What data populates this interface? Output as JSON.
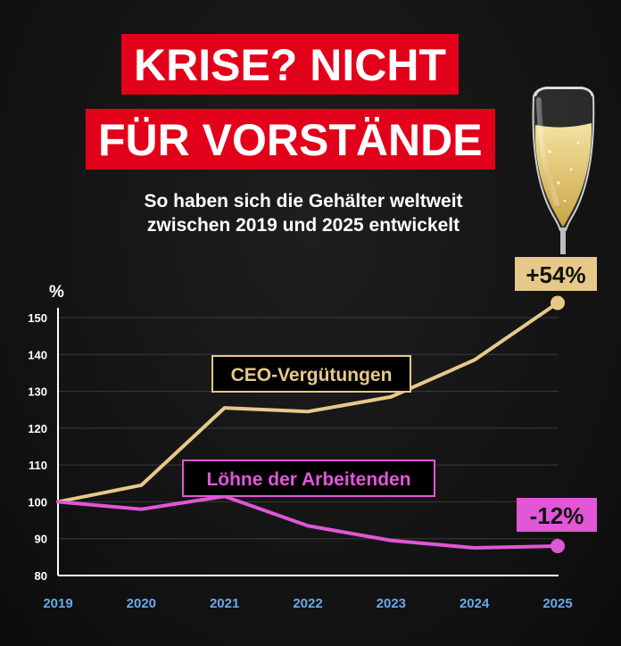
{
  "title_lines": [
    "KRISE? NICHT",
    "FÜR VORSTÄNDE"
  ],
  "subtitle_lines": [
    "So haben sich die Gehälter weltweit",
    "zwischen 2019 und 2025 entwickelt"
  ],
  "colors": {
    "title_bg": "#e2001a",
    "ceo": "#e6c98a",
    "workers": "#e157d6",
    "x_ticks": "#6aa8e8",
    "grid": "#3a3a3a"
  },
  "icon": "champagne-glass-icon",
  "chart_data": {
    "type": "line",
    "x": [
      2019,
      2020,
      2021,
      2022,
      2023,
      2024,
      2025
    ],
    "ylabel": "%",
    "ylim": [
      80,
      155
    ],
    "yticks": [
      80,
      90,
      100,
      110,
      120,
      130,
      140,
      150
    ],
    "grid": true,
    "series": [
      {
        "name": "CEO-Vergütungen",
        "values": [
          100,
          104.5,
          125.5,
          124.5,
          128.5,
          138.5,
          154
        ],
        "end_label": "+54%",
        "color": "#e6c98a"
      },
      {
        "name": "Löhne der Arbeitenden",
        "values": [
          100,
          98,
          101.5,
          93.5,
          89.5,
          87.5,
          88
        ],
        "end_label": "-12%",
        "color": "#e157d6"
      }
    ]
  }
}
